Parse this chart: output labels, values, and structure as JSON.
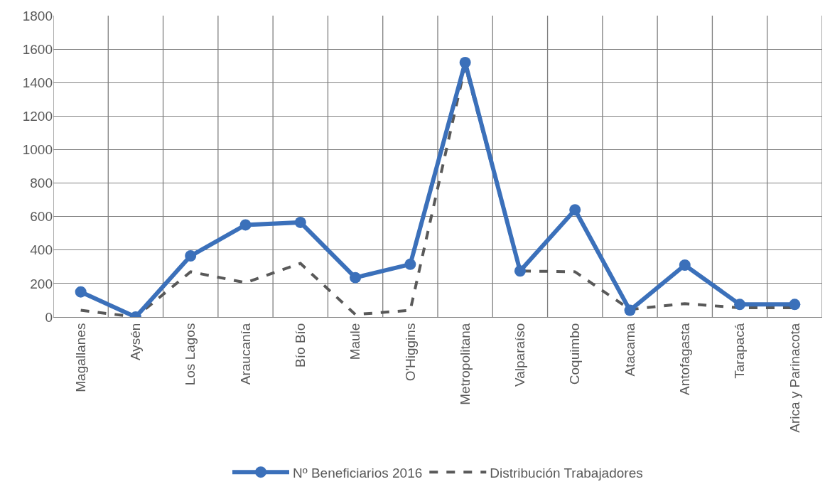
{
  "chart_data": {
    "type": "line",
    "categories": [
      "Magallanes",
      "Aysén",
      "Los Lagos",
      "Araucanía",
      "Bío Bío",
      "Maule",
      "O'Higgins",
      "Metropolitana",
      "Valparaíso",
      "Coquimbo",
      "Atacama",
      "Antofagasta",
      "Tarapacá",
      "Arica y Parinacota"
    ],
    "series": [
      {
        "name": "Nº Beneficiarios 2016",
        "color": "#3b70ba",
        "marker": "circle",
        "line_style": "solid",
        "values": [
          150,
          0,
          365,
          550,
          565,
          235,
          315,
          1520,
          275,
          640,
          40,
          310,
          75,
          75
        ]
      },
      {
        "name": "Distribución Trabajadores",
        "color": "#595959",
        "marker": "none",
        "line_style": "dashed",
        "values": [
          40,
          0,
          270,
          205,
          320,
          15,
          40,
          1500,
          275,
          270,
          45,
          80,
          55,
          55
        ]
      }
    ],
    "ylim": [
      0,
      1800
    ],
    "yticks": [
      0,
      200,
      400,
      600,
      800,
      1000,
      1200,
      1400,
      1600,
      1800
    ],
    "grid": true,
    "legend": "bottom"
  }
}
